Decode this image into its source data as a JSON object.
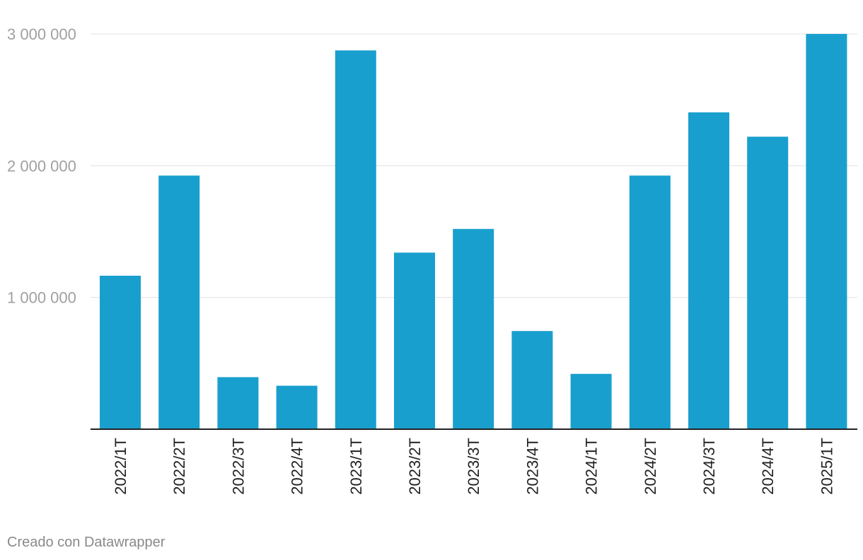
{
  "chart_data": {
    "type": "bar",
    "categories": [
      "2022/1T",
      "2022/2T",
      "2022/3T",
      "2022/4T",
      "2023/1T",
      "2023/2T",
      "2023/3T",
      "2023/4T",
      "2024/1T",
      "2024/2T",
      "2024/3T",
      "2024/4T",
      "2025/1T"
    ],
    "values": [
      1165000,
      1925000,
      395000,
      330000,
      2875000,
      1340000,
      1520000,
      745000,
      420000,
      1925000,
      2405000,
      2220000,
      3000000
    ],
    "ylim": [
      0,
      3000000
    ],
    "yticks": [
      1000000,
      2000000,
      3000000
    ],
    "ytick_labels": [
      "1 000 000",
      "2 000 000",
      "3 000 000"
    ],
    "bar_color": "#199fce",
    "grid": true
  },
  "footer": {
    "credit": "Creado con Datawrapper"
  }
}
